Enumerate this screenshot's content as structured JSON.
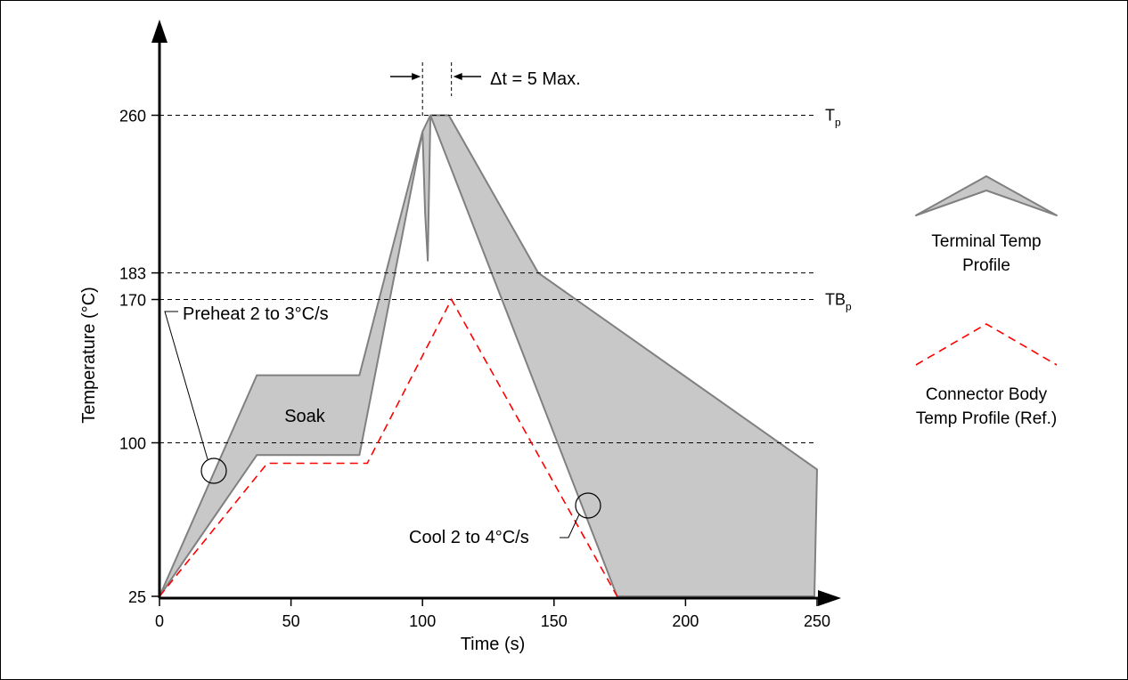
{
  "chart_data": {
    "type": "area",
    "xlabel": "Time (s)",
    "ylabel": "Temperature (°C)",
    "xlim": [
      0,
      250
    ],
    "x_ticks": [
      0,
      50,
      100,
      150,
      200,
      250
    ],
    "y_ticks": [
      25,
      100,
      170,
      183,
      260
    ],
    "reference_lines": [
      {
        "y": 260,
        "label": "T",
        "subscript": "p"
      },
      {
        "y": 183,
        "label": "",
        "subscript": ""
      },
      {
        "y": 170,
        "label": "TB",
        "subscript": "p"
      },
      {
        "y": 100,
        "label": "",
        "subscript": ""
      }
    ],
    "series": [
      {
        "name": "Terminal Temp Profile",
        "style": "shaded band",
        "color": "#c8c8c8",
        "edge_color": "#808080",
        "upper": {
          "x": [
            0,
            37,
            76,
            100,
            101,
            102,
            103,
            110,
            144,
            250,
            250
          ],
          "y": [
            25,
            133,
            133,
            252,
            212,
            189,
            260,
            260,
            183,
            87,
            87
          ]
        },
        "lower": {
          "x": [
            0,
            37,
            76,
            100,
            103,
            174,
            249
          ],
          "y": [
            25,
            94,
            94,
            252,
            260,
            25,
            25
          ]
        }
      },
      {
        "name": "Connector Body Temp Profile (Ref.)",
        "style": "dashed",
        "color": "#ff0000",
        "x": [
          0,
          41,
          79,
          111,
          174
        ],
        "y": [
          25,
          90,
          90,
          170,
          25
        ]
      }
    ],
    "annotations": {
      "preheat": "Preheat 2 to 3°C/s",
      "soak": "Soak",
      "cool": "Cool 2 to 4°C/s",
      "delta_t": "Δt = 5 Max."
    },
    "legend": [
      {
        "label_lines": [
          "Terminal Temp",
          "Profile"
        ]
      },
      {
        "label_lines": [
          "Connector Body",
          "Temp Profile (Ref.)"
        ]
      }
    ],
    "legend_position": "right"
  }
}
